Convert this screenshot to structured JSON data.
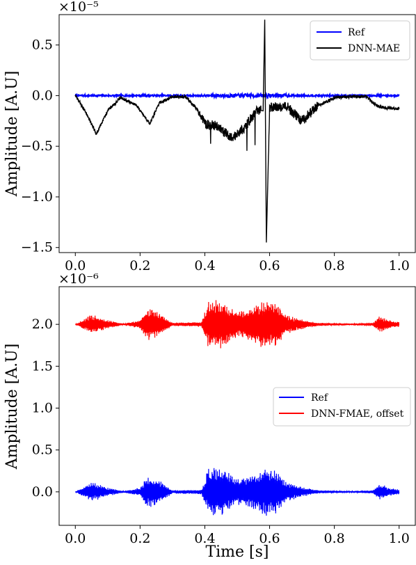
{
  "chart_data": [
    {
      "type": "line",
      "multiplier_label": "×10⁻⁵",
      "ylabel": "Amplitude [A.U]",
      "xlabel": "",
      "xlim": [
        -0.05,
        1.05
      ],
      "ylim": [
        -1.55,
        0.8
      ],
      "x_ticks": [
        "0.0",
        "0.2",
        "0.4",
        "0.6",
        "0.8",
        "1.0"
      ],
      "y_ticks": [
        "−1.5",
        "−1.0",
        "−0.5",
        "0.0",
        "0.5"
      ],
      "legend_position": "upper right",
      "series": [
        {
          "name": "Ref",
          "color": "#0000ff",
          "x": [
            0.0,
            0.05,
            0.1,
            0.2,
            0.25,
            0.3,
            0.45,
            0.5,
            0.55,
            0.6,
            0.65,
            0.8,
            0.95,
            1.0
          ],
          "y": [
            0.0,
            0.0,
            0.0,
            0.0,
            0.0,
            0.0,
            0.0,
            0.0,
            0.0,
            0.0,
            0.0,
            0.0,
            0.0,
            0.0
          ]
        },
        {
          "name": "DNN-MAE",
          "color": "#000000",
          "x": [
            0.0,
            0.03,
            0.065,
            0.1,
            0.14,
            0.19,
            0.23,
            0.26,
            0.3,
            0.34,
            0.38,
            0.4,
            0.44,
            0.48,
            0.52,
            0.56,
            0.58,
            0.585,
            0.59,
            0.6,
            0.65,
            0.7,
            0.75,
            0.8,
            0.85,
            0.9,
            0.93,
            0.96,
            1.0
          ],
          "y": [
            0.0,
            -0.15,
            -0.38,
            -0.15,
            -0.02,
            -0.1,
            -0.28,
            -0.07,
            -0.01,
            -0.01,
            -0.15,
            -0.28,
            -0.3,
            -0.42,
            -0.33,
            -0.14,
            -0.15,
            0.75,
            -1.45,
            -0.12,
            -0.1,
            -0.25,
            -0.1,
            -0.02,
            -0.01,
            -0.01,
            -0.1,
            -0.12,
            -0.13
          ]
        }
      ]
    },
    {
      "type": "line",
      "multiplier_label": "×10⁻⁶",
      "ylabel": "Amplitude [A.U]",
      "xlabel": "Time [s]",
      "xlim": [
        -0.05,
        1.05
      ],
      "ylim": [
        -0.4,
        2.45
      ],
      "x_ticks": [
        "0.0",
        "0.2",
        "0.4",
        "0.6",
        "0.8",
        "1.0"
      ],
      "y_ticks": [
        "0.0",
        "0.5",
        "1.0",
        "1.5",
        "2.0"
      ],
      "legend_position": "center right",
      "series": [
        {
          "name": "Ref",
          "color": "#0000ff",
          "offset": 0.0,
          "envelope_x": [
            0.0,
            0.05,
            0.1,
            0.15,
            0.2,
            0.22,
            0.25,
            0.3,
            0.39,
            0.41,
            0.45,
            0.5,
            0.55,
            0.58,
            0.62,
            0.65,
            0.7,
            0.75,
            0.85,
            0.92,
            0.94,
            0.97,
            1.0
          ],
          "envelope_y": [
            0.0,
            0.12,
            0.05,
            0.01,
            0.05,
            0.2,
            0.17,
            0.02,
            0.03,
            0.28,
            0.3,
            0.15,
            0.22,
            0.3,
            0.28,
            0.12,
            0.06,
            0.02,
            0.01,
            0.02,
            0.1,
            0.05,
            0.03
          ]
        },
        {
          "name": "DNN-FMAE, offset",
          "color": "#ff0000",
          "offset": 2.0,
          "envelope_x": [
            0.0,
            0.05,
            0.1,
            0.15,
            0.2,
            0.22,
            0.25,
            0.3,
            0.39,
            0.41,
            0.45,
            0.5,
            0.55,
            0.58,
            0.62,
            0.65,
            0.7,
            0.75,
            0.85,
            0.92,
            0.94,
            0.97,
            1.0
          ],
          "envelope_y": [
            0.0,
            0.12,
            0.05,
            0.01,
            0.05,
            0.2,
            0.17,
            0.02,
            0.03,
            0.28,
            0.3,
            0.15,
            0.22,
            0.3,
            0.28,
            0.12,
            0.06,
            0.02,
            0.01,
            0.02,
            0.1,
            0.05,
            0.03
          ]
        }
      ]
    }
  ]
}
